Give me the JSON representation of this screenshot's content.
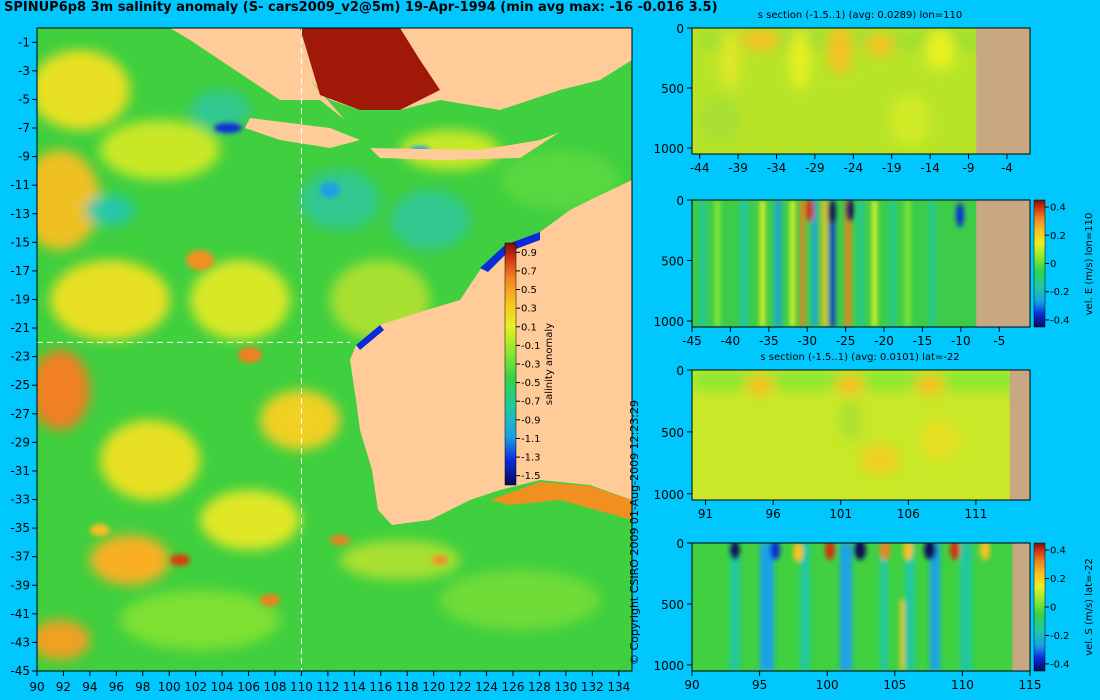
{
  "title": "SPINUP6p8 3m salinity anomaly (S- cars2009_v2@5m) 19-Apr-1994 (min avg max: -16 -0.016 3.5)",
  "copyright": "© Copyright CSIRO 2009   01-Aug-2009 12:23:29",
  "colors": {
    "background": "#00c8ff",
    "land": "#ffcc99",
    "section_land": "#c8a882",
    "colormap": [
      "#08085a",
      "#0a2bd8",
      "#1aa0e8",
      "#22c7a0",
      "#34d24a",
      "#8ce830",
      "#e8f020",
      "#f8c020",
      "#f08020",
      "#d03010",
      "#7a1008"
    ]
  },
  "chart_data": [
    {
      "id": "map",
      "type": "heatmap",
      "xlim": [
        90,
        135
      ],
      "ylim": [
        -45,
        0
      ],
      "x_ticks": [
        "90",
        "92",
        "94",
        "96",
        "98",
        "100",
        "102",
        "104",
        "106",
        "108",
        "110",
        "112",
        "114",
        "116",
        "118",
        "120",
        "122",
        "124",
        "126",
        "128",
        "130",
        "132",
        "134"
      ],
      "y_ticks": [
        "-1",
        "-3",
        "-5",
        "-7",
        "-9",
        "-11",
        "-13",
        "-15",
        "-17",
        "-19",
        "-21",
        "-23",
        "-25",
        "-27",
        "-29",
        "-31",
        "-33",
        "-35",
        "-37",
        "-39",
        "-41",
        "-43",
        "-45"
      ],
      "crosshair": {
        "lon": 110,
        "lat": -22
      },
      "colorbar": {
        "label": "salinity anomaly",
        "range": [
          -1.6,
          1.0
        ],
        "ticks": [
          "0.9",
          "0.7",
          "0.5",
          "0.3",
          "0.1",
          "-0.1",
          "-0.3",
          "-0.5",
          "-0.7",
          "-0.9",
          "-1.1",
          "-1.3",
          "-1.5"
        ]
      }
    },
    {
      "id": "s-section-lon",
      "type": "heatmap",
      "title": "s section (-1.5..1) (avg: 0.0289) lon=110",
      "x_ticks": [
        "-44",
        "-39",
        "-34",
        "-29",
        "-24",
        "-19",
        "-14",
        "-9",
        "-4"
      ],
      "xlim": [
        -45,
        -1
      ],
      "ylim": [
        1050,
        0
      ],
      "y_ticks": [
        "0",
        "500",
        "1000"
      ],
      "land_from": -8
    },
    {
      "id": "vel-e-section",
      "type": "heatmap",
      "x_ticks": [
        "-45",
        "-40",
        "-35",
        "-30",
        "-25",
        "-20",
        "-15",
        "-10",
        "-5"
      ],
      "xlim": [
        -45,
        -1
      ],
      "ylim": [
        1050,
        0
      ],
      "y_ticks": [
        "0",
        "500",
        "1000"
      ],
      "land_from": -8,
      "colorbar": {
        "label": "vel. E (m/s) lon=110",
        "ticks": [
          "0.4",
          "0.2",
          "0",
          "-0.2",
          "-0.4"
        ],
        "range": [
          -0.45,
          0.45
        ]
      }
    },
    {
      "id": "s-section-lat",
      "type": "heatmap",
      "title": "s section (-1.5..1) (avg: 0.0101) lat=-22",
      "x_ticks": [
        "91",
        "96",
        "101",
        "106",
        "111"
      ],
      "xlim": [
        90,
        115
      ],
      "ylim": [
        1050,
        0
      ],
      "y_ticks": [
        "0",
        "500",
        "1000"
      ],
      "land_from": 113.5
    },
    {
      "id": "vel-s-section",
      "type": "heatmap",
      "x_ticks": [
        "90",
        "95",
        "100",
        "105",
        "110",
        "115"
      ],
      "xlim": [
        90,
        115
      ],
      "ylim": [
        1050,
        0
      ],
      "y_ticks": [
        "0",
        "500",
        "1000"
      ],
      "land_from": 113.7,
      "colorbar": {
        "label": "vel. S (m/s) lat=-22",
        "ticks": [
          "0.4",
          "0.2",
          "0",
          "-0.2",
          "-0.4"
        ],
        "range": [
          -0.45,
          0.45
        ]
      }
    }
  ]
}
